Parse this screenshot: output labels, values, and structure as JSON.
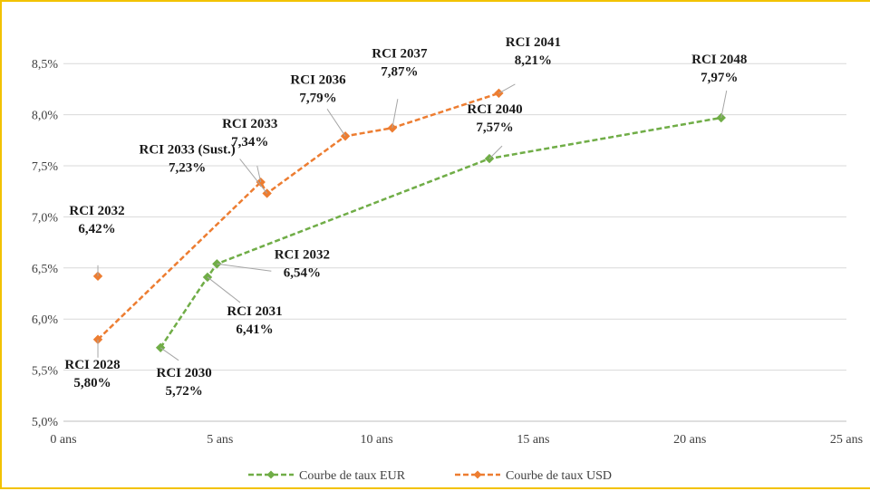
{
  "chart_data": {
    "type": "scatter",
    "title": "",
    "xlabel": "",
    "ylabel": "",
    "x_ticks": [
      "0 ans",
      "5 ans",
      "10 ans",
      "15 ans",
      "20 ans",
      "25 ans"
    ],
    "y_ticks": [
      "5,0%",
      "5,5%",
      "6,0%",
      "6,5%",
      "7,0%",
      "7,5%",
      "8,0%",
      "8,5%"
    ],
    "xlim": [
      0,
      25
    ],
    "ylim": [
      5.0,
      8.75
    ],
    "grid": "horizontal",
    "legend_position": "bottom",
    "series": [
      {
        "name": "Courbe de taux EUR",
        "color": "#70ad47",
        "line": "dashed",
        "points": [
          {
            "x": 3.1,
            "y": 5.72,
            "name": "RCI 2030",
            "value": "5,72%"
          },
          {
            "x": 4.6,
            "y": 6.41,
            "name": "RCI 2031",
            "value": "6,41%"
          },
          {
            "x": 4.9,
            "y": 6.54,
            "name": "RCI 2032",
            "value": "6,54%"
          },
          {
            "x": 13.6,
            "y": 7.57,
            "name": "RCI 2040",
            "value": "7,57%"
          },
          {
            "x": 21.0,
            "y": 7.97,
            "name": "RCI 2048",
            "value": "7,97%"
          }
        ]
      },
      {
        "name": "Courbe de taux USD",
        "color": "#ed7d31",
        "line": "dashed",
        "points": [
          {
            "x": 1.1,
            "y": 5.8,
            "name": "RCI 2028",
            "value": "5,80%"
          },
          {
            "x": 6.3,
            "y": 7.34,
            "name": "RCI 2033",
            "value": "7,34%"
          },
          {
            "x": 6.5,
            "y": 7.23,
            "name": "RCI 2033 (Sust.)",
            "value": "7,23%"
          },
          {
            "x": 9.0,
            "y": 7.79,
            "name": "RCI 2036",
            "value": "7,79%"
          },
          {
            "x": 10.5,
            "y": 7.87,
            "name": "RCI 2037",
            "value": "7,87%"
          },
          {
            "x": 13.9,
            "y": 8.21,
            "name": "RCI 2041",
            "value": "8,21%"
          }
        ]
      },
      {
        "name": "",
        "color": "#ed7d31",
        "line": "none",
        "points": [
          {
            "x": 1.1,
            "y": 6.42,
            "name": "RCI 2032",
            "value": "6,42%"
          }
        ]
      }
    ]
  }
}
